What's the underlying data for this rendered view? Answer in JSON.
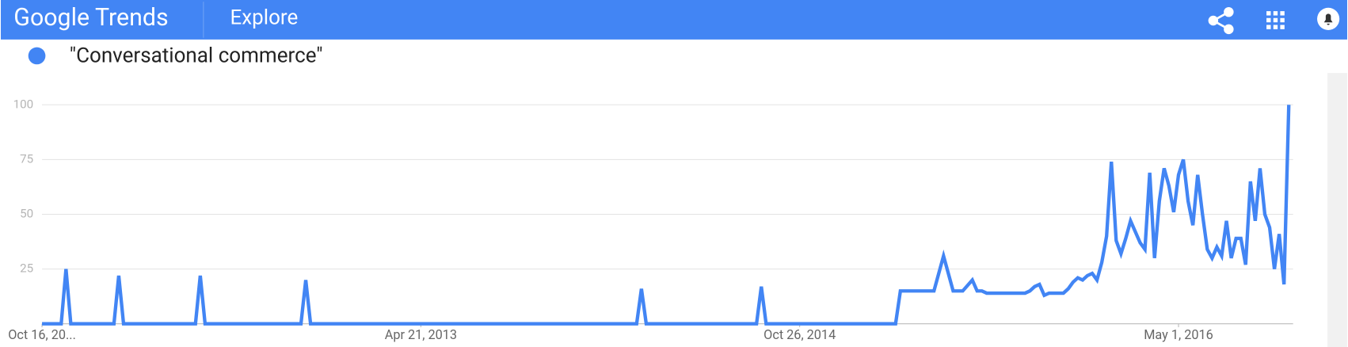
{
  "header": {
    "logo": "Google Trends",
    "section": "Explore"
  },
  "chart_data": {
    "type": "line",
    "x": [
      0,
      4,
      5,
      6,
      15,
      16,
      17,
      32,
      33,
      34,
      54,
      55,
      56,
      124,
      125,
      126,
      149,
      150,
      151,
      178,
      179,
      186,
      188,
      190,
      192,
      194,
      195,
      196,
      197,
      205,
      206,
      207,
      208,
      209,
      210,
      213,
      214,
      215,
      216,
      217,
      218,
      219,
      220,
      221,
      222,
      223,
      224,
      225,
      226,
      227,
      228,
      229,
      230,
      231,
      232,
      233,
      234,
      235,
      236,
      237,
      238,
      239,
      240,
      241,
      242,
      243,
      244,
      245,
      246,
      247,
      248,
      249,
      250,
      251,
      252,
      253,
      254,
      255,
      256,
      257,
      258,
      259,
      260
    ],
    "series": [
      {
        "name": "\"Conversational commerce\"",
        "color": "#4285f4",
        "values": [
          0,
          0,
          25,
          0,
          0,
          22,
          0,
          0,
          22,
          0,
          0,
          20,
          0,
          0,
          16,
          0,
          0,
          17,
          0,
          0,
          15,
          15,
          31,
          15,
          15,
          20,
          15,
          15,
          14,
          14,
          15,
          17,
          18,
          13,
          14,
          14,
          16,
          19,
          21,
          20,
          22,
          23,
          20,
          28,
          40,
          74,
          38,
          32,
          39,
          47,
          42,
          37,
          34,
          69,
          30,
          56,
          71,
          63,
          51,
          68,
          75,
          56,
          45,
          68,
          50,
          34,
          30,
          35,
          31,
          47,
          30,
          39,
          39,
          27,
          65,
          47,
          71,
          50,
          44,
          25,
          41,
          18,
          100
        ]
      }
    ],
    "xlim": [
      0,
      260
    ],
    "xticks": [
      {
        "value": 0,
        "label": "Oct 16, 20..."
      },
      {
        "value": 79,
        "label": "Apr 21, 2013"
      },
      {
        "value": 158,
        "label": "Oct 26, 2014"
      },
      {
        "value": 237,
        "label": "May 1, 2016"
      }
    ],
    "ylim": [
      0,
      100
    ],
    "yticks": [
      25,
      50,
      75,
      100
    ],
    "grid": true
  }
}
